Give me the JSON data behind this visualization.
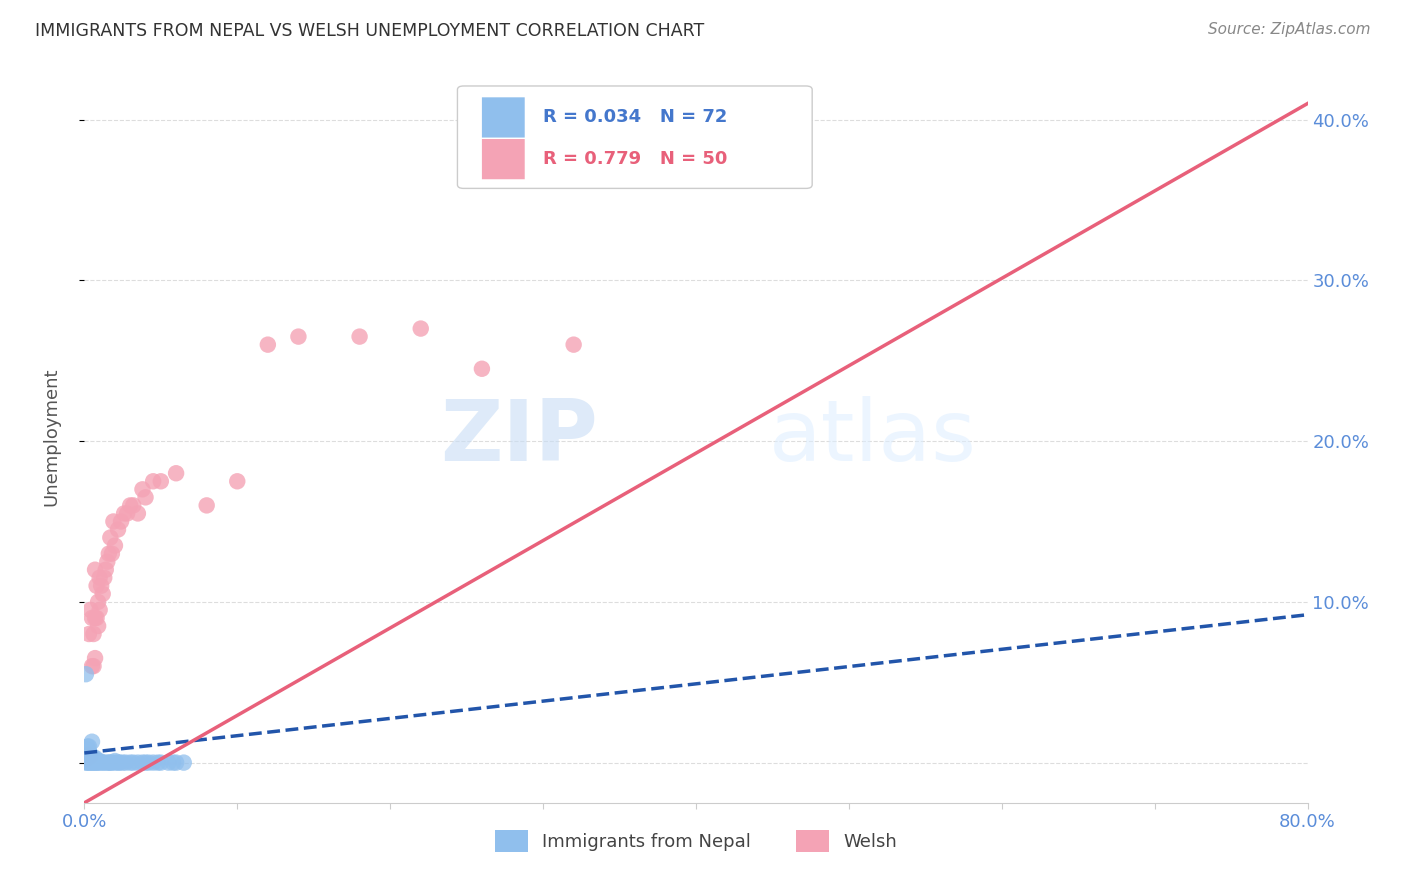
{
  "title": "IMMIGRANTS FROM NEPAL VS WELSH UNEMPLOYMENT CORRELATION CHART",
  "source": "Source: ZipAtlas.com",
  "ylabel": "Unemployment",
  "ytick_values": [
    0.0,
    0.1,
    0.2,
    0.3,
    0.4
  ],
  "ytick_labels_right": [
    "",
    "10.0%",
    "20.0%",
    "30.0%",
    "40.0%"
  ],
  "xlim": [
    0.0,
    0.8
  ],
  "ylim": [
    -0.025,
    0.43
  ],
  "legend_r1": "0.034",
  "legend_n1": "72",
  "legend_r2": "0.779",
  "legend_n2": "50",
  "nepal_color": "#90bfed",
  "welsh_color": "#f4a3b5",
  "nepal_line_color": "#2255aa",
  "welsh_line_color": "#e8607a",
  "watermark_zip": "ZIP",
  "watermark_atlas": "atlas",
  "background_color": "#ffffff",
  "nepal_x": [
    0.001,
    0.001,
    0.001,
    0.001,
    0.001,
    0.001,
    0.001,
    0.001,
    0.001,
    0.001,
    0.002,
    0.002,
    0.002,
    0.002,
    0.002,
    0.002,
    0.002,
    0.002,
    0.002,
    0.003,
    0.003,
    0.003,
    0.003,
    0.003,
    0.003,
    0.003,
    0.004,
    0.004,
    0.004,
    0.004,
    0.004,
    0.005,
    0.005,
    0.005,
    0.005,
    0.006,
    0.006,
    0.006,
    0.007,
    0.007,
    0.007,
    0.008,
    0.008,
    0.009,
    0.009,
    0.01,
    0.01,
    0.012,
    0.013,
    0.015,
    0.016,
    0.017,
    0.018,
    0.02,
    0.02,
    0.022,
    0.023,
    0.025,
    0.027,
    0.03,
    0.032,
    0.035,
    0.038,
    0.04,
    0.042,
    0.045,
    0.048,
    0.05,
    0.055,
    0.058,
    0.06,
    0.065
  ],
  "nepal_y": [
    0.0,
    0.001,
    0.002,
    0.003,
    0.004,
    0.005,
    0.006,
    0.007,
    0.008,
    0.055,
    0.0,
    0.001,
    0.002,
    0.003,
    0.004,
    0.005,
    0.006,
    0.008,
    0.01,
    0.0,
    0.001,
    0.002,
    0.003,
    0.005,
    0.007,
    0.01,
    0.0,
    0.001,
    0.002,
    0.003,
    0.005,
    0.0,
    0.001,
    0.002,
    0.013,
    0.0,
    0.001,
    0.003,
    0.0,
    0.001,
    0.003,
    0.0,
    0.001,
    0.0,
    0.001,
    0.0,
    0.001,
    0.0,
    0.0,
    0.0,
    0.0,
    0.0,
    0.0,
    0.0,
    0.001,
    0.0,
    0.0,
    0.0,
    0.0,
    0.0,
    0.0,
    0.0,
    0.0,
    0.0,
    0.0,
    0.0,
    0.0,
    0.0,
    0.0,
    0.0,
    0.0,
    0.0
  ],
  "welsh_x": [
    0.001,
    0.002,
    0.003,
    0.003,
    0.004,
    0.004,
    0.005,
    0.005,
    0.006,
    0.006,
    0.007,
    0.007,
    0.007,
    0.008,
    0.008,
    0.009,
    0.009,
    0.01,
    0.01,
    0.011,
    0.012,
    0.013,
    0.014,
    0.015,
    0.016,
    0.017,
    0.018,
    0.019,
    0.02,
    0.022,
    0.024,
    0.026,
    0.028,
    0.03,
    0.032,
    0.035,
    0.038,
    0.04,
    0.045,
    0.05,
    0.06,
    0.08,
    0.1,
    0.12,
    0.14,
    0.18,
    0.22,
    0.26,
    0.32,
    0.38
  ],
  "welsh_y": [
    0.002,
    0.003,
    0.005,
    0.08,
    0.004,
    0.095,
    0.06,
    0.09,
    0.06,
    0.08,
    0.065,
    0.09,
    0.12,
    0.09,
    0.11,
    0.085,
    0.1,
    0.095,
    0.115,
    0.11,
    0.105,
    0.115,
    0.12,
    0.125,
    0.13,
    0.14,
    0.13,
    0.15,
    0.135,
    0.145,
    0.15,
    0.155,
    0.155,
    0.16,
    0.16,
    0.155,
    0.17,
    0.165,
    0.175,
    0.175,
    0.18,
    0.16,
    0.175,
    0.26,
    0.265,
    0.265,
    0.27,
    0.245,
    0.26,
    0.38
  ],
  "nepal_trend_x": [
    0.0,
    0.8
  ],
  "nepal_trend_y": [
    0.006,
    0.092
  ],
  "welsh_trend_x": [
    0.0,
    0.8
  ],
  "welsh_trend_y": [
    -0.025,
    0.41
  ]
}
